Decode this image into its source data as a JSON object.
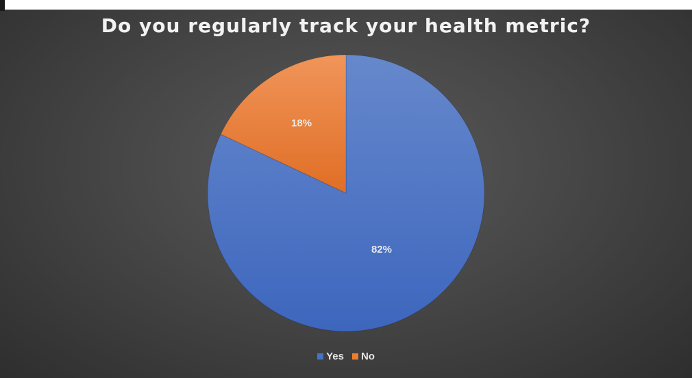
{
  "chart_data": {
    "type": "pie",
    "title": "Do you regularly track your health metric?",
    "categories": [
      "Yes",
      "No"
    ],
    "values": [
      82,
      18
    ],
    "data_labels": [
      "82%",
      "18%"
    ],
    "colors": [
      "#4472c4",
      "#ed7d31"
    ],
    "legend_position": "bottom"
  }
}
